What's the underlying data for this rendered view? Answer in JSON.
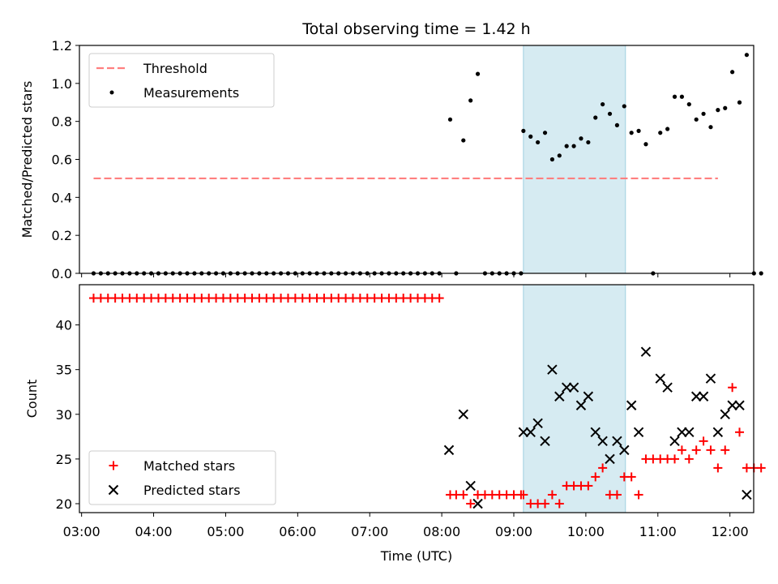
{
  "chart_data": [
    {
      "type": "scatter",
      "title": "Total observing time = 1.42 h",
      "xlabel": "",
      "ylabel": "Matched/Predicted stars",
      "ylim": [
        0,
        1.2
      ],
      "yticks": [
        "0.0",
        "0.2",
        "0.4",
        "0.6",
        "0.8",
        "1.0",
        "1.2"
      ],
      "xlim_hours": [
        2.97,
        12.33
      ],
      "highlight_span": [
        "09:08",
        "10:33"
      ],
      "legend_position": "top-left",
      "threshold": {
        "name": "Threshold",
        "value": 0.5,
        "x_range": [
          "03:10",
          "11:50"
        ],
        "color": "#ff7f7f"
      },
      "series": [
        {
          "name": "Measurements",
          "color": "#000000",
          "points": [
            [
              "03:10",
              0
            ],
            [
              "03:16",
              0
            ],
            [
              "03:22",
              0
            ],
            [
              "03:28",
              0
            ],
            [
              "03:34",
              0
            ],
            [
              "03:40",
              0
            ],
            [
              "03:46",
              0
            ],
            [
              "03:52",
              0
            ],
            [
              "03:58",
              0
            ],
            [
              "04:04",
              0
            ],
            [
              "04:10",
              0
            ],
            [
              "04:16",
              0
            ],
            [
              "04:22",
              0
            ],
            [
              "04:28",
              0
            ],
            [
              "04:34",
              0
            ],
            [
              "04:40",
              0
            ],
            [
              "04:46",
              0
            ],
            [
              "04:52",
              0
            ],
            [
              "04:58",
              0
            ],
            [
              "05:04",
              0
            ],
            [
              "05:10",
              0
            ],
            [
              "05:16",
              0
            ],
            [
              "05:22",
              0
            ],
            [
              "05:28",
              0
            ],
            [
              "05:34",
              0
            ],
            [
              "05:40",
              0
            ],
            [
              "05:46",
              0
            ],
            [
              "05:52",
              0
            ],
            [
              "05:58",
              0
            ],
            [
              "06:04",
              0
            ],
            [
              "06:10",
              0
            ],
            [
              "06:16",
              0
            ],
            [
              "06:22",
              0
            ],
            [
              "06:28",
              0
            ],
            [
              "06:34",
              0
            ],
            [
              "06:40",
              0
            ],
            [
              "06:46",
              0
            ],
            [
              "06:52",
              0
            ],
            [
              "06:58",
              0
            ],
            [
              "07:04",
              0
            ],
            [
              "07:10",
              0
            ],
            [
              "07:16",
              0
            ],
            [
              "07:22",
              0
            ],
            [
              "07:28",
              0
            ],
            [
              "07:34",
              0
            ],
            [
              "07:40",
              0
            ],
            [
              "07:46",
              0
            ],
            [
              "07:52",
              0
            ],
            [
              "07:58",
              0
            ],
            [
              "08:07",
              0.81
            ],
            [
              "08:12",
              0
            ],
            [
              "08:18",
              0.7
            ],
            [
              "08:24",
              0.91
            ],
            [
              "08:30",
              1.05
            ],
            [
              "08:36",
              0
            ],
            [
              "08:42",
              0
            ],
            [
              "08:48",
              0
            ],
            [
              "08:54",
              0
            ],
            [
              "09:00",
              0
            ],
            [
              "09:06",
              0
            ],
            [
              "09:08",
              0.75
            ],
            [
              "09:14",
              0.72
            ],
            [
              "09:20",
              0.69
            ],
            [
              "09:26",
              0.74
            ],
            [
              "09:32",
              0.6
            ],
            [
              "09:38",
              0.62
            ],
            [
              "09:44",
              0.67
            ],
            [
              "09:50",
              0.67
            ],
            [
              "09:56",
              0.71
            ],
            [
              "10:02",
              0.69
            ],
            [
              "10:08",
              0.82
            ],
            [
              "10:14",
              0.89
            ],
            [
              "10:20",
              0.84
            ],
            [
              "10:26",
              0.78
            ],
            [
              "10:32",
              0.88
            ],
            [
              "10:38",
              0.74
            ],
            [
              "10:44",
              0.75
            ],
            [
              "10:50",
              0.68
            ],
            [
              "10:56",
              0
            ],
            [
              "11:02",
              0.74
            ],
            [
              "11:08",
              0.76
            ],
            [
              "11:14",
              0.93
            ],
            [
              "11:20",
              0.93
            ],
            [
              "11:26",
              0.89
            ],
            [
              "11:32",
              0.81
            ],
            [
              "11:38",
              0.84
            ],
            [
              "11:44",
              0.77
            ],
            [
              "11:50",
              0.86
            ],
            [
              "11:56",
              0.87
            ],
            [
              "12:02",
              1.06
            ],
            [
              "12:08",
              0.9
            ],
            [
              "12:14",
              1.15
            ],
            [
              "12:20",
              0
            ],
            [
              "12:26",
              0
            ]
          ]
        }
      ]
    },
    {
      "type": "scatter",
      "title": "",
      "xlabel": "Time (UTC)",
      "ylabel": "Count",
      "ylim": [
        19,
        44.5
      ],
      "yticks": [
        "20",
        "25",
        "30",
        "35",
        "40"
      ],
      "xticks": [
        "03:00",
        "04:00",
        "05:00",
        "06:00",
        "07:00",
        "08:00",
        "09:00",
        "10:00",
        "11:00",
        "12:00"
      ],
      "xlim_hours": [
        2.97,
        12.33
      ],
      "highlight_span": [
        "09:08",
        "10:33"
      ],
      "legend_position": "bottom-left",
      "series": [
        {
          "name": "Matched stars",
          "marker": "plus",
          "color": "#ff0000",
          "points": [
            [
              "03:10",
              43
            ],
            [
              "03:16",
              43
            ],
            [
              "03:22",
              43
            ],
            [
              "03:28",
              43
            ],
            [
              "03:34",
              43
            ],
            [
              "03:40",
              43
            ],
            [
              "03:46",
              43
            ],
            [
              "03:52",
              43
            ],
            [
              "03:58",
              43
            ],
            [
              "04:04",
              43
            ],
            [
              "04:10",
              43
            ],
            [
              "04:16",
              43
            ],
            [
              "04:22",
              43
            ],
            [
              "04:28",
              43
            ],
            [
              "04:34",
              43
            ],
            [
              "04:40",
              43
            ],
            [
              "04:46",
              43
            ],
            [
              "04:52",
              43
            ],
            [
              "04:58",
              43
            ],
            [
              "05:04",
              43
            ],
            [
              "05:10",
              43
            ],
            [
              "05:16",
              43
            ],
            [
              "05:22",
              43
            ],
            [
              "05:28",
              43
            ],
            [
              "05:34",
              43
            ],
            [
              "05:40",
              43
            ],
            [
              "05:46",
              43
            ],
            [
              "05:52",
              43
            ],
            [
              "05:58",
              43
            ],
            [
              "06:04",
              43
            ],
            [
              "06:10",
              43
            ],
            [
              "06:16",
              43
            ],
            [
              "06:22",
              43
            ],
            [
              "06:28",
              43
            ],
            [
              "06:34",
              43
            ],
            [
              "06:40",
              43
            ],
            [
              "06:46",
              43
            ],
            [
              "06:52",
              43
            ],
            [
              "06:58",
              43
            ],
            [
              "07:04",
              43
            ],
            [
              "07:10",
              43
            ],
            [
              "07:16",
              43
            ],
            [
              "07:22",
              43
            ],
            [
              "07:28",
              43
            ],
            [
              "07:34",
              43
            ],
            [
              "07:40",
              43
            ],
            [
              "07:46",
              43
            ],
            [
              "07:52",
              43
            ],
            [
              "07:58",
              43
            ],
            [
              "08:07",
              21
            ],
            [
              "08:12",
              21
            ],
            [
              "08:18",
              21
            ],
            [
              "08:24",
              20
            ],
            [
              "08:30",
              21
            ],
            [
              "08:36",
              21
            ],
            [
              "08:42",
              21
            ],
            [
              "08:48",
              21
            ],
            [
              "08:54",
              21
            ],
            [
              "09:00",
              21
            ],
            [
              "09:06",
              21
            ],
            [
              "09:08",
              21
            ],
            [
              "09:14",
              20
            ],
            [
              "09:20",
              20
            ],
            [
              "09:26",
              20
            ],
            [
              "09:32",
              21
            ],
            [
              "09:38",
              20
            ],
            [
              "09:44",
              22
            ],
            [
              "09:50",
              22
            ],
            [
              "09:56",
              22
            ],
            [
              "10:02",
              22
            ],
            [
              "10:08",
              23
            ],
            [
              "10:14",
              24
            ],
            [
              "10:20",
              21
            ],
            [
              "10:26",
              21
            ],
            [
              "10:32",
              23
            ],
            [
              "10:38",
              23
            ],
            [
              "10:44",
              21
            ],
            [
              "10:50",
              25
            ],
            [
              "10:56",
              25
            ],
            [
              "11:02",
              25
            ],
            [
              "11:08",
              25
            ],
            [
              "11:14",
              25
            ],
            [
              "11:20",
              26
            ],
            [
              "11:26",
              25
            ],
            [
              "11:32",
              26
            ],
            [
              "11:38",
              27
            ],
            [
              "11:44",
              26
            ],
            [
              "11:50",
              24
            ],
            [
              "11:56",
              26
            ],
            [
              "12:02",
              33
            ],
            [
              "12:08",
              28
            ],
            [
              "12:14",
              24
            ],
            [
              "12:20",
              24
            ],
            [
              "12:26",
              24
            ]
          ]
        },
        {
          "name": "Predicted stars",
          "marker": "x",
          "color": "#000000",
          "points": [
            [
              "08:06",
              26
            ],
            [
              "08:18",
              30
            ],
            [
              "08:24",
              22
            ],
            [
              "08:30",
              20
            ],
            [
              "09:08",
              28
            ],
            [
              "09:14",
              28
            ],
            [
              "09:20",
              29
            ],
            [
              "09:26",
              27
            ],
            [
              "09:32",
              35
            ],
            [
              "09:38",
              32
            ],
            [
              "09:44",
              33
            ],
            [
              "09:50",
              33
            ],
            [
              "09:56",
              31
            ],
            [
              "10:02",
              32
            ],
            [
              "10:08",
              28
            ],
            [
              "10:14",
              27
            ],
            [
              "10:20",
              25
            ],
            [
              "10:26",
              27
            ],
            [
              "10:32",
              26
            ],
            [
              "10:38",
              31
            ],
            [
              "10:44",
              28
            ],
            [
              "10:50",
              37
            ],
            [
              "11:02",
              34
            ],
            [
              "11:08",
              33
            ],
            [
              "11:14",
              27
            ],
            [
              "11:20",
              28
            ],
            [
              "11:26",
              28
            ],
            [
              "11:32",
              32
            ],
            [
              "11:38",
              32
            ],
            [
              "11:44",
              34
            ],
            [
              "11:50",
              28
            ],
            [
              "11:56",
              30
            ],
            [
              "12:02",
              31
            ],
            [
              "12:08",
              31
            ],
            [
              "12:14",
              21
            ]
          ]
        }
      ]
    }
  ]
}
